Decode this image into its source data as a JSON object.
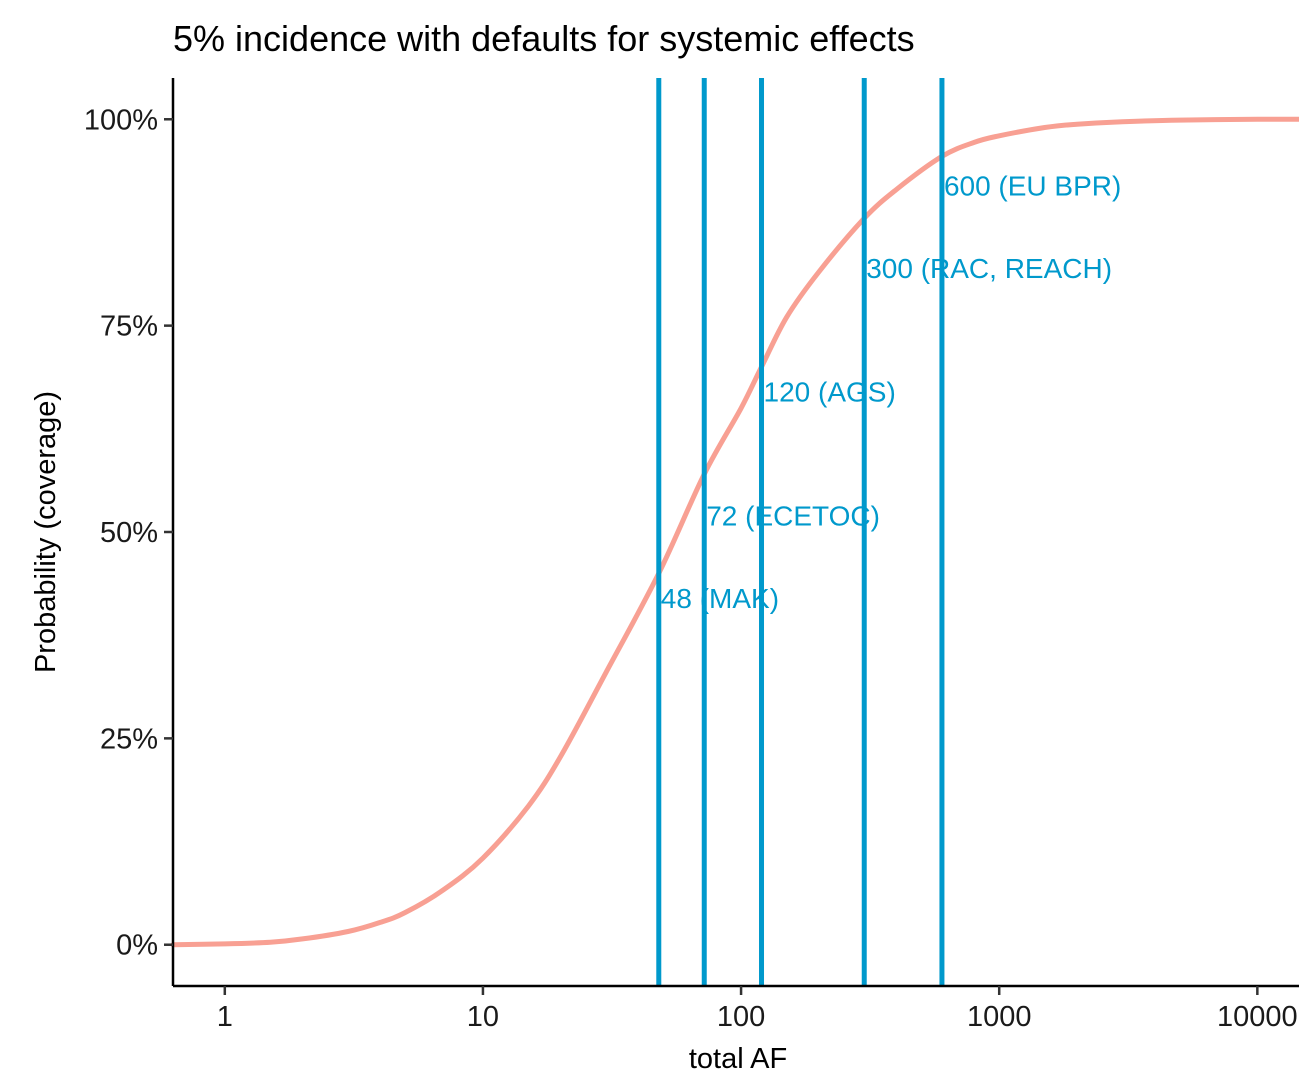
{
  "chart_data": {
    "type": "line",
    "title": "5% incidence with defaults for systemic effects",
    "xlabel": "total AF",
    "ylabel": "Probability (coverage)",
    "x_scale": "log10",
    "xlim": [
      0.63,
      14500
    ],
    "ylim": [
      -0.05,
      1.05
    ],
    "x_ticks": [
      {
        "value": 1,
        "label": "1"
      },
      {
        "value": 10,
        "label": "10"
      },
      {
        "value": 100,
        "label": "100"
      },
      {
        "value": 1000,
        "label": "1000"
      },
      {
        "value": 10000,
        "label": "10000"
      }
    ],
    "y_ticks": [
      {
        "value": 0,
        "label": "0%"
      },
      {
        "value": 0.25,
        "label": "25%"
      },
      {
        "value": 0.5,
        "label": "50%"
      },
      {
        "value": 0.75,
        "label": "75%"
      },
      {
        "value": 1,
        "label": "100%"
      }
    ],
    "grid": false,
    "legend": "none",
    "series": [
      {
        "color": "#f8a093",
        "x": [
          0.63,
          1,
          1.5,
          2,
          3,
          4,
          5,
          7,
          10,
          15,
          20,
          30,
          48,
          72,
          100,
          120,
          150,
          200,
          300,
          400,
          600,
          800,
          1000,
          1500,
          2000,
          3000,
          5000,
          10000,
          14500
        ],
        "y": [
          0.0,
          0.001,
          0.003,
          0.007,
          0.016,
          0.027,
          0.039,
          0.066,
          0.105,
          0.168,
          0.228,
          0.33,
          0.45,
          0.57,
          0.65,
          0.7,
          0.76,
          0.815,
          0.88,
          0.915,
          0.955,
          0.972,
          0.98,
          0.99,
          0.994,
          0.997,
          0.999,
          1.0,
          1.0
        ]
      }
    ],
    "reference_lines": [
      {
        "x": 48,
        "label": "48 (MAK)",
        "label_y": 0.42
      },
      {
        "x": 72,
        "label": "72 (ECETOC)",
        "label_y": 0.52
      },
      {
        "x": 120,
        "label": "120 (AGS)",
        "label_y": 0.67
      },
      {
        "x": 300,
        "label": "300 (RAC, REACH)",
        "label_y": 0.82
      },
      {
        "x": 600,
        "label": "600 (EU BPR)",
        "label_y": 0.92
      }
    ],
    "reference_color": "#0099cc"
  }
}
